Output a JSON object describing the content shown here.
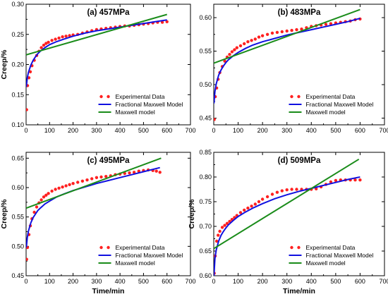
{
  "chart_data": [
    {
      "type": "scatter",
      "title": "(a) 457MPa",
      "xlabel": "",
      "ylabel": "Creep/%",
      "xlim": [
        0,
        700
      ],
      "ylim": [
        0.1,
        0.3
      ],
      "xticks": [
        0,
        100,
        200,
        300,
        400,
        500,
        600,
        700
      ],
      "yticks": [
        0.1,
        0.15,
        0.2,
        0.25,
        0.3
      ],
      "ytick_labels": [
        "0.10",
        "0.15",
        "0.20",
        "0.25",
        "0.30"
      ],
      "legend_position": "bottom-right",
      "series": [
        {
          "name": "Experimental Data",
          "kind": "points",
          "color": "#ff2020",
          "x": [
            2,
            6,
            12,
            18,
            25,
            35,
            45,
            55,
            65,
            75,
            85,
            95,
            110,
            125,
            140,
            155,
            170,
            185,
            200,
            220,
            240,
            260,
            280,
            300,
            320,
            340,
            360,
            380,
            400,
            420,
            440,
            460,
            480,
            500,
            520,
            540,
            560,
            580,
            600
          ],
          "y": [
            0.125,
            0.165,
            0.178,
            0.188,
            0.198,
            0.207,
            0.215,
            0.222,
            0.228,
            0.232,
            0.235,
            0.237,
            0.24,
            0.242,
            0.244,
            0.246,
            0.247,
            0.248,
            0.249,
            0.25,
            0.252,
            0.254,
            0.256,
            0.258,
            0.259,
            0.26,
            0.261,
            0.262,
            0.263,
            0.264,
            0.264,
            0.265,
            0.266,
            0.267,
            0.268,
            0.269,
            0.27,
            0.27,
            0.271
          ]
        },
        {
          "name": "Fractional Maxwell Model",
          "kind": "line",
          "color": "#1010e0",
          "x": [
            1,
            5,
            10,
            20,
            30,
            40,
            50,
            60,
            80,
            100,
            130,
            160,
            200,
            250,
            300,
            350,
            400,
            450,
            500,
            550,
            600
          ],
          "y": [
            0.163,
            0.178,
            0.187,
            0.199,
            0.207,
            0.213,
            0.218,
            0.222,
            0.228,
            0.233,
            0.238,
            0.242,
            0.247,
            0.252,
            0.256,
            0.259,
            0.262,
            0.265,
            0.268,
            0.271,
            0.274
          ]
        },
        {
          "name": "Maxwell model",
          "kind": "line",
          "color": "#1a8c1a",
          "x": [
            0,
            600
          ],
          "y": [
            0.216,
            0.283
          ]
        }
      ]
    },
    {
      "type": "scatter",
      "title": "(b) 483MPa",
      "xlabel": "",
      "ylabel": "",
      "xlim": [
        0,
        700
      ],
      "ylim": [
        0.44,
        0.62
      ],
      "xticks": [
        0,
        100,
        200,
        300,
        400,
        500,
        600,
        700
      ],
      "yticks": [
        0.45,
        0.5,
        0.55,
        0.6
      ],
      "ytick_labels": [
        "0.45",
        "0.50",
        "0.55",
        "0.60"
      ],
      "legend_position": "bottom-right",
      "series": [
        {
          "name": "Experimental Data",
          "kind": "points",
          "color": "#ff2020",
          "x": [
            2,
            6,
            12,
            18,
            25,
            35,
            45,
            55,
            65,
            75,
            85,
            95,
            110,
            125,
            140,
            155,
            170,
            185,
            200,
            220,
            240,
            260,
            280,
            300,
            320,
            340,
            360,
            380,
            400,
            420,
            440,
            460,
            480,
            500,
            520,
            540,
            560,
            580,
            600
          ],
          "y": [
            0.448,
            0.482,
            0.495,
            0.508,
            0.518,
            0.527,
            0.535,
            0.541,
            0.545,
            0.549,
            0.552,
            0.555,
            0.558,
            0.561,
            0.564,
            0.566,
            0.568,
            0.571,
            0.573,
            0.575,
            0.577,
            0.578,
            0.579,
            0.58,
            0.581,
            0.582,
            0.583,
            0.585,
            0.587,
            0.588,
            0.589,
            0.59,
            0.591,
            0.592,
            0.593,
            0.594,
            0.595,
            0.597,
            0.598
          ]
        },
        {
          "name": "Fractional Maxwell Model",
          "kind": "line",
          "color": "#1010e0",
          "x": [
            1,
            5,
            10,
            20,
            30,
            40,
            50,
            60,
            80,
            100,
            130,
            160,
            200,
            250,
            300,
            350,
            400,
            450,
            500,
            550,
            600
          ],
          "y": [
            0.472,
            0.49,
            0.501,
            0.514,
            0.522,
            0.528,
            0.533,
            0.537,
            0.543,
            0.548,
            0.554,
            0.559,
            0.564,
            0.569,
            0.574,
            0.578,
            0.582,
            0.586,
            0.59,
            0.594,
            0.599
          ]
        },
        {
          "name": "Maxwell model",
          "kind": "line",
          "color": "#1a8c1a",
          "x": [
            0,
            600
          ],
          "y": [
            0.532,
            0.612
          ]
        }
      ]
    },
    {
      "type": "scatter",
      "title": "(c) 495MPa",
      "xlabel": "Time/min",
      "ylabel": "Creep/%",
      "xlim": [
        0,
        700
      ],
      "ylim": [
        0.45,
        0.66
      ],
      "xticks": [
        0,
        100,
        200,
        300,
        400,
        500,
        600,
        700
      ],
      "yticks": [
        0.45,
        0.5,
        0.55,
        0.6,
        0.65
      ],
      "ytick_labels": [
        "0.45",
        "0.50",
        "0.55",
        "0.60",
        "0.65"
      ],
      "legend_position": "bottom-right",
      "series": [
        {
          "name": "Experimental Data",
          "kind": "points",
          "color": "#ff2020",
          "x": [
            2,
            6,
            12,
            18,
            25,
            35,
            45,
            55,
            65,
            75,
            85,
            95,
            110,
            125,
            140,
            155,
            170,
            185,
            200,
            220,
            240,
            260,
            280,
            300,
            320,
            340,
            360,
            380,
            400,
            420,
            440,
            460,
            480,
            500,
            520,
            540,
            555,
            570
          ],
          "y": [
            0.478,
            0.498,
            0.52,
            0.535,
            0.547,
            0.558,
            0.567,
            0.574,
            0.579,
            0.584,
            0.587,
            0.59,
            0.594,
            0.597,
            0.599,
            0.601,
            0.603,
            0.605,
            0.607,
            0.609,
            0.611,
            0.613,
            0.615,
            0.617,
            0.618,
            0.619,
            0.62,
            0.622,
            0.623,
            0.624,
            0.625,
            0.626,
            0.628,
            0.629,
            0.63,
            0.629,
            0.628,
            0.626
          ]
        },
        {
          "name": "Fractional Maxwell Model",
          "kind": "line",
          "color": "#1010e0",
          "x": [
            1,
            5,
            10,
            20,
            30,
            40,
            50,
            60,
            80,
            100,
            130,
            160,
            200,
            250,
            300,
            350,
            400,
            450,
            500,
            570
          ],
          "y": [
            0.498,
            0.515,
            0.526,
            0.54,
            0.549,
            0.555,
            0.561,
            0.565,
            0.572,
            0.577,
            0.584,
            0.589,
            0.595,
            0.601,
            0.607,
            0.612,
            0.617,
            0.622,
            0.627,
            0.634
          ]
        },
        {
          "name": "Maxwell model",
          "kind": "line",
          "color": "#1a8c1a",
          "x": [
            0,
            575
          ],
          "y": [
            0.565,
            0.65
          ]
        }
      ]
    },
    {
      "type": "scatter",
      "title": "(d) 509MPa",
      "xlabel": "Time/min",
      "ylabel": "Creep/%",
      "xlim": [
        0,
        700
      ],
      "ylim": [
        0.6,
        0.85
      ],
      "xticks": [
        0,
        100,
        200,
        300,
        400,
        500,
        600,
        700
      ],
      "yticks": [
        0.6,
        0.65,
        0.7,
        0.75,
        0.8,
        0.85
      ],
      "ytick_labels": [
        "0.60",
        "0.65",
        "0.70",
        "0.75",
        "0.80",
        "0.85"
      ],
      "legend_position": "bottom-right",
      "series": [
        {
          "name": "Experimental Data",
          "kind": "points",
          "color": "#ff2020",
          "x": [
            2,
            6,
            12,
            18,
            25,
            35,
            45,
            55,
            65,
            75,
            85,
            95,
            110,
            125,
            140,
            155,
            170,
            185,
            200,
            220,
            240,
            260,
            280,
            300,
            320,
            340,
            360,
            380,
            400,
            420,
            440,
            460,
            480,
            500,
            520,
            540,
            560,
            580,
            600
          ],
          "y": [
            0.605,
            0.64,
            0.67,
            0.682,
            0.69,
            0.698,
            0.702,
            0.706,
            0.71,
            0.714,
            0.718,
            0.722,
            0.728,
            0.733,
            0.737,
            0.741,
            0.745,
            0.75,
            0.755,
            0.76,
            0.765,
            0.769,
            0.772,
            0.774,
            0.775,
            0.775,
            0.775,
            0.775,
            0.775,
            0.776,
            0.78,
            0.785,
            0.79,
            0.793,
            0.794,
            0.794,
            0.794,
            0.794,
            0.794
          ]
        },
        {
          "name": "Fractional Maxwell Model",
          "kind": "line",
          "color": "#1010e0",
          "x": [
            1,
            5,
            10,
            20,
            30,
            40,
            50,
            60,
            80,
            100,
            130,
            160,
            200,
            250,
            300,
            350,
            400,
            450,
            500,
            550,
            600
          ],
          "y": [
            0.6,
            0.635,
            0.652,
            0.67,
            0.682,
            0.69,
            0.697,
            0.703,
            0.712,
            0.72,
            0.729,
            0.737,
            0.746,
            0.756,
            0.764,
            0.771,
            0.777,
            0.783,
            0.789,
            0.795,
            0.8
          ]
        },
        {
          "name": "Maxwell model",
          "kind": "line",
          "color": "#1a8c1a",
          "x": [
            0,
            595
          ],
          "y": [
            0.655,
            0.836
          ]
        }
      ]
    }
  ]
}
